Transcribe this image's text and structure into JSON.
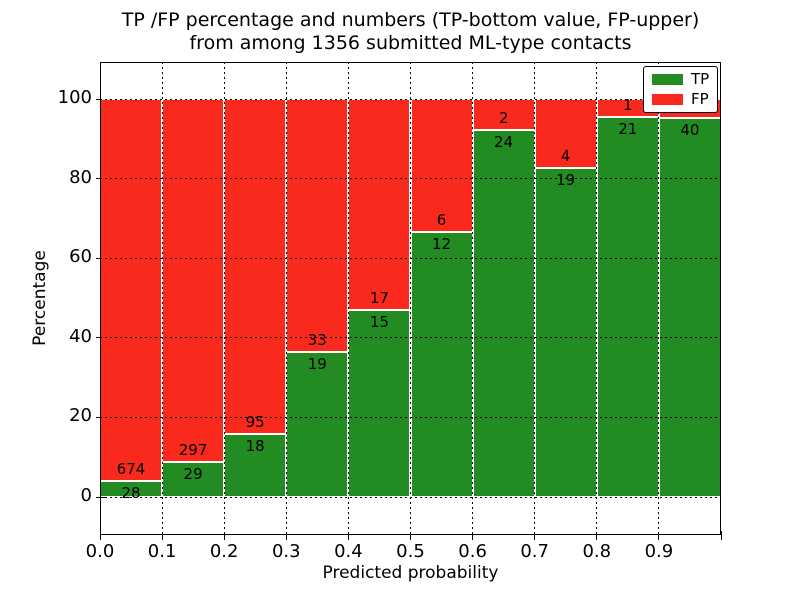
{
  "title": {
    "line1": "TP /FP percentage and numbers (TP-bottom value, FP-upper)",
    "line2": "from among 1356 submitted ML-type contacts"
  },
  "chart_data": {
    "type": "bar",
    "subtype": "percentage_stacked",
    "title_lines": [
      "TP /FP percentage and numbers (TP-bottom value, FP-upper)",
      "from among 1356 submitted ML-type contacts"
    ],
    "xlabel": "Predicted probability",
    "ylabel": "Percentage",
    "x_tick_labels": [
      "0.0",
      "0.1",
      "0.2",
      "0.3",
      "0.4",
      "0.5",
      "0.6",
      "0.7",
      "0.8",
      "0.9"
    ],
    "y_tick_values": [
      0,
      20,
      40,
      60,
      80,
      100
    ],
    "xlim": [
      0.0,
      1.0
    ],
    "ylim_pct": [
      -9.5,
      109.3
    ],
    "grid": "dotted",
    "legend_position": "upper right",
    "total_contacts": 1356,
    "bins": [
      {
        "range": [
          0.0,
          0.1
        ],
        "tp": 28,
        "fp": 674
      },
      {
        "range": [
          0.1,
          0.2
        ],
        "tp": 29,
        "fp": 297
      },
      {
        "range": [
          0.2,
          0.3
        ],
        "tp": 18,
        "fp": 95
      },
      {
        "range": [
          0.3,
          0.4
        ],
        "tp": 19,
        "fp": 33
      },
      {
        "range": [
          0.4,
          0.5
        ],
        "tp": 15,
        "fp": 17
      },
      {
        "range": [
          0.5,
          0.6
        ],
        "tp": 12,
        "fp": 6
      },
      {
        "range": [
          0.6,
          0.7
        ],
        "tp": 24,
        "fp": 2
      },
      {
        "range": [
          0.7,
          0.8
        ],
        "tp": 19,
        "fp": 4
      },
      {
        "range": [
          0.8,
          0.9
        ],
        "tp": 21,
        "fp": 1
      },
      {
        "range": [
          0.9,
          1.0
        ],
        "tp": 40,
        "fp": 2,
        "fp_label_hidden": true
      }
    ],
    "series": [
      {
        "name": "TP",
        "color": "#228b22"
      },
      {
        "name": "FP",
        "color": "#f92a1d"
      }
    ]
  },
  "colors": {
    "tp_green": "#228b22",
    "fp_red": "#f92a1d",
    "grid_and_text": "#000000",
    "background": "#ffffff"
  }
}
